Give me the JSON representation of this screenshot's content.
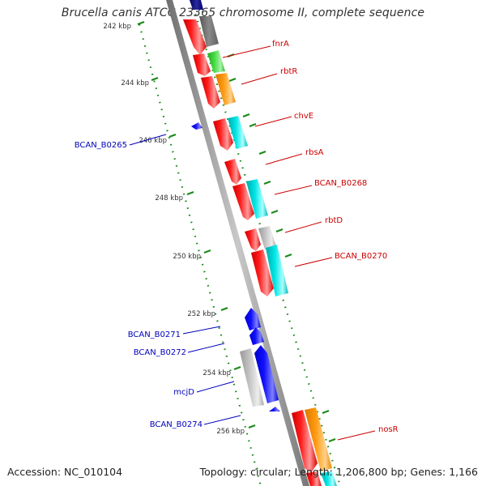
{
  "title": "Brucella canis ATCC 23365 chromosome II, complete sequence",
  "footer": {
    "accession": "Accession: NC_010104",
    "summary": "Topology: circular; Length: 1,206,800 bp; Genes: 1,166"
  },
  "colors": {
    "backbone": "#8c8c8c",
    "tick_green": "#1a8a1a",
    "forward_label": "#cc0000",
    "reverse_label": "#0000bb",
    "red": "#ff0000",
    "cyan": "#00dddd",
    "orange": "#ff9900",
    "green": "#33cc33",
    "grey": "#b8b8b8",
    "blue": "#0000ff"
  },
  "scale": {
    "unit": "kbp",
    "ticks": [
      "242 kbp",
      "244 kbp",
      "246 kbp",
      "248 kbp",
      "250 kbp",
      "252 kbp",
      "254 kbp",
      "256 kbp"
    ]
  },
  "forward_labels": [
    "fnrA",
    "rbtR",
    "chvE",
    "rbsA",
    "BCAN_B0268",
    "rbtD",
    "BCAN_B0270",
    "nosR"
  ],
  "reverse_labels": [
    "BCAN_B0265",
    "BCAN_B0271",
    "BCAN_B0272",
    "mcjD",
    "BCAN_B0274"
  ]
}
